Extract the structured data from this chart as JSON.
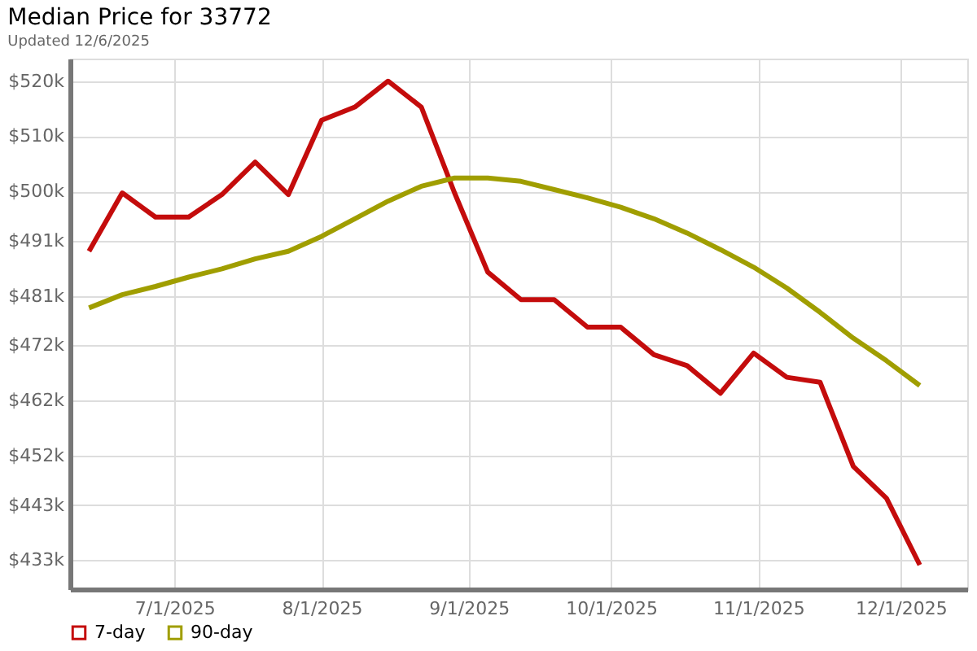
{
  "chart_data": {
    "type": "line",
    "title": "Median Price for 33772",
    "subtitle": "Updated 12/6/2025",
    "x": [
      "2025-06-13",
      "2025-06-20",
      "2025-06-27",
      "2025-07-04",
      "2025-07-11",
      "2025-07-18",
      "2025-07-25",
      "2025-08-01",
      "2025-08-08",
      "2025-08-15",
      "2025-08-22",
      "2025-08-29",
      "2025-09-05",
      "2025-09-12",
      "2025-09-19",
      "2025-09-26",
      "2025-10-03",
      "2025-10-10",
      "2025-10-17",
      "2025-10-24",
      "2025-10-31",
      "2025-11-07",
      "2025-11-14",
      "2025-11-21",
      "2025-11-28",
      "2025-12-05"
    ],
    "series": [
      {
        "name": "7-day",
        "color": "#c40c0c",
        "values": [
          489100,
          499700,
          495300,
          495300,
          499400,
          505300,
          499400,
          512900,
          515300,
          520000,
          515300,
          499700,
          485300,
          480300,
          480300,
          475300,
          475300,
          470300,
          468300,
          463300,
          470600,
          466200,
          465300,
          450000,
          444200,
          432100
        ]
      },
      {
        "name": "90-day",
        "color": "#a09e00",
        "values": [
          478800,
          481200,
          482700,
          484400,
          485900,
          487700,
          489100,
          491800,
          495000,
          498200,
          500900,
          502400,
          502400,
          501800,
          500300,
          498800,
          497100,
          495000,
          492400,
          489400,
          486200,
          482400,
          478000,
          473300,
          469200,
          464700
        ]
      }
    ],
    "xlim": [
      "2025-06-09",
      "2025-12-15"
    ],
    "xticks": [
      {
        "value": "2025-07-01",
        "label": "7/1/2025"
      },
      {
        "value": "2025-08-01",
        "label": "8/1/2025"
      },
      {
        "value": "2025-09-01",
        "label": "9/1/2025"
      },
      {
        "value": "2025-10-01",
        "label": "10/1/2025"
      },
      {
        "value": "2025-11-01",
        "label": "11/1/2025"
      },
      {
        "value": "2025-12-01",
        "label": "12/1/2025"
      }
    ],
    "ylim": [
      427700,
      524100
    ],
    "yticks": [
      {
        "value": 433000,
        "label": "$433k"
      },
      {
        "value": 443000,
        "label": "$443k"
      },
      {
        "value": 452000,
        "label": "$452k"
      },
      {
        "value": 462000,
        "label": "$462k"
      },
      {
        "value": 472000,
        "label": "$472k"
      },
      {
        "value": 481000,
        "label": "$481k"
      },
      {
        "value": 491000,
        "label": "$491k"
      },
      {
        "value": 500000,
        "label": "$500k"
      },
      {
        "value": 510000,
        "label": "$510k"
      },
      {
        "value": 520000,
        "label": "$520k"
      }
    ],
    "grid": true,
    "legend": "bottom left",
    "marker": "none",
    "line_style": "solid"
  }
}
